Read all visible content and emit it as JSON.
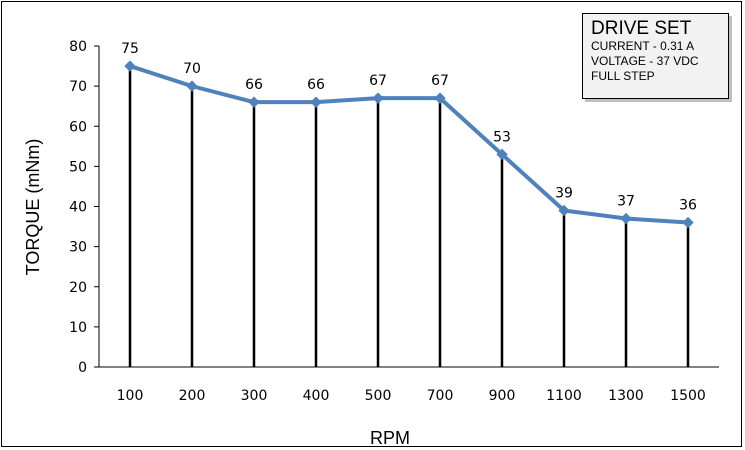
{
  "chart_data": {
    "type": "line",
    "categories": [
      "100",
      "200",
      "300",
      "400",
      "500",
      "700",
      "900",
      "1100",
      "1300",
      "1500"
    ],
    "series": [
      {
        "values": [
          75,
          70,
          66,
          66,
          67,
          67,
          53,
          39,
          37,
          36
        ]
      }
    ],
    "data_labels": [
      "75",
      "70",
      "66",
      "66",
      "67",
      "67",
      "53",
      "39",
      "37",
      "36"
    ],
    "xlabel": "RPM",
    "ylabel": "TORQUE (mNm)",
    "ylim": [
      0,
      80
    ],
    "yticks": [
      "0",
      "10",
      "20",
      "30",
      "40",
      "50",
      "60",
      "70",
      "80"
    ],
    "drop_lines": true,
    "series_color": "#4f81bd",
    "legend_position": "top-right",
    "annotation": {
      "title": "DRIVE SET",
      "lines": [
        "CURRENT - 0.31 A",
        "VOLTAGE - 37 VDC",
        "FULL STEP"
      ]
    }
  }
}
